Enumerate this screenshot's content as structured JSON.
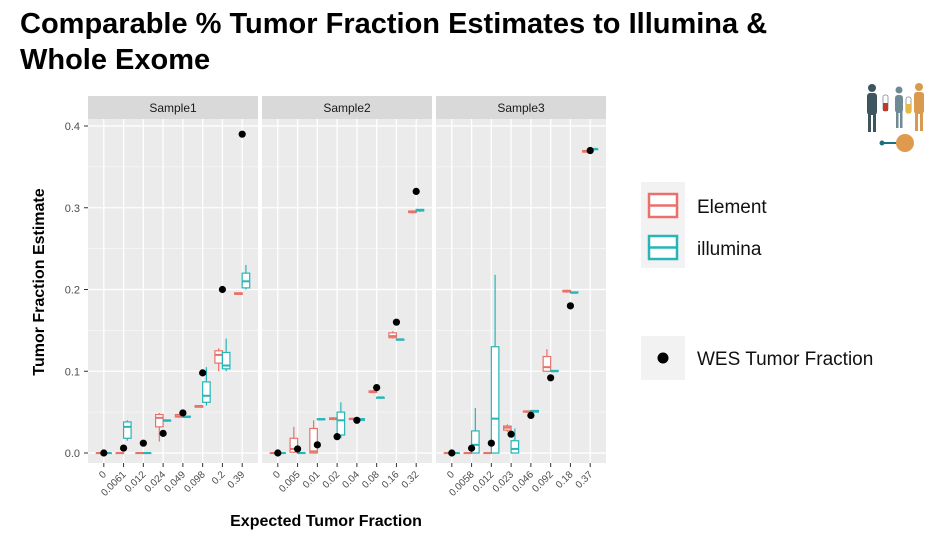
{
  "slide": {
    "title_line1": "Comparable % Tumor Fraction Estimates to Illumina &",
    "title_line2": "Whole Exome"
  },
  "chart_data": {
    "type": "boxplot",
    "ylabel": "Tumor Fraction Estimate",
    "xlabel": "Expected Tumor Fraction",
    "ylim": [
      -0.01,
      0.41
    ],
    "yticks": [
      0.0,
      0.1,
      0.2,
      0.3,
      0.4
    ],
    "ytick_labels": [
      "0.0",
      "0.1",
      "0.2",
      "0.3",
      "0.4"
    ],
    "grid": true,
    "legend_position": "right",
    "legend": {
      "element": "Element",
      "illumina": "illumina",
      "wes": "WES Tumor Fraction"
    },
    "colors": {
      "element": "#E8726A",
      "illumina": "#26B5B8",
      "wes": "#000000",
      "panel_bg": "#EBEBEB",
      "strip_bg": "#D9D9D9",
      "grid": "#FFFFFF"
    },
    "panels": [
      {
        "name": "Sample1",
        "categories": [
          "0",
          "0.0061",
          "0.012",
          "0.024",
          "0.049",
          "0.098",
          "0.2",
          "0.39"
        ],
        "element": [
          {
            "lo": 0.0,
            "q1": 0.0,
            "med": 0.0,
            "q3": 0.0,
            "hi": 0.0
          },
          {
            "lo": 0.0,
            "q1": 0.0,
            "med": 0.0,
            "q3": 0.0,
            "hi": 0.0
          },
          {
            "lo": 0.0,
            "q1": 0.0,
            "med": 0.0,
            "q3": 0.0,
            "hi": 0.0
          },
          {
            "lo": 0.014,
            "q1": 0.032,
            "med": 0.043,
            "q3": 0.047,
            "hi": 0.049
          },
          {
            "lo": 0.043,
            "q1": 0.044,
            "med": 0.045,
            "q3": 0.047,
            "hi": 0.048
          },
          {
            "lo": 0.056,
            "q1": 0.056,
            "med": 0.057,
            "q3": 0.058,
            "hi": 0.058
          },
          {
            "lo": 0.1,
            "q1": 0.11,
            "med": 0.12,
            "q3": 0.125,
            "hi": 0.128
          },
          {
            "lo": 0.194,
            "q1": 0.194,
            "med": 0.195,
            "q3": 0.196,
            "hi": 0.196
          }
        ],
        "illumina": [
          {
            "lo": 0.0,
            "q1": 0.0,
            "med": 0.0,
            "q3": 0.0,
            "hi": 0.0
          },
          {
            "lo": 0.015,
            "q1": 0.018,
            "med": 0.032,
            "q3": 0.038,
            "hi": 0.04
          },
          {
            "lo": 0.0,
            "q1": 0.0,
            "med": 0.0,
            "q3": 0.0,
            "hi": 0.0
          },
          {
            "lo": 0.038,
            "q1": 0.039,
            "med": 0.04,
            "q3": 0.04,
            "hi": 0.041
          },
          {
            "lo": 0.043,
            "q1": 0.044,
            "med": 0.044,
            "q3": 0.045,
            "hi": 0.045
          },
          {
            "lo": 0.058,
            "q1": 0.062,
            "med": 0.07,
            "q3": 0.087,
            "hi": 0.105
          },
          {
            "lo": 0.1,
            "q1": 0.103,
            "med": 0.107,
            "q3": 0.123,
            "hi": 0.14
          },
          {
            "lo": 0.2,
            "q1": 0.202,
            "med": 0.21,
            "q3": 0.22,
            "hi": 0.23
          }
        ],
        "wes": [
          0.0,
          0.006,
          0.012,
          0.024,
          0.049,
          0.098,
          0.2,
          0.39
        ]
      },
      {
        "name": "Sample2",
        "categories": [
          "0",
          "0.005",
          "0.01",
          "0.02",
          "0.04",
          "0.08",
          "0.16",
          "0.32"
        ],
        "element": [
          {
            "lo": 0.0,
            "q1": 0.0,
            "med": 0.0,
            "q3": 0.0,
            "hi": 0.0
          },
          {
            "lo": 0.0,
            "q1": 0.001,
            "med": 0.005,
            "q3": 0.018,
            "hi": 0.032
          },
          {
            "lo": 0.0,
            "q1": 0.0,
            "med": 0.002,
            "q3": 0.03,
            "hi": 0.04
          },
          {
            "lo": 0.04,
            "q1": 0.041,
            "med": 0.042,
            "q3": 0.043,
            "hi": 0.044
          },
          {
            "lo": 0.041,
            "q1": 0.041,
            "med": 0.042,
            "q3": 0.042,
            "hi": 0.043
          },
          {
            "lo": 0.073,
            "q1": 0.074,
            "med": 0.075,
            "q3": 0.076,
            "hi": 0.077
          },
          {
            "lo": 0.14,
            "q1": 0.141,
            "med": 0.143,
            "q3": 0.147,
            "hi": 0.149
          },
          {
            "lo": 0.293,
            "q1": 0.294,
            "med": 0.295,
            "q3": 0.296,
            "hi": 0.297
          }
        ],
        "illumina": [
          {
            "lo": 0.0,
            "q1": 0.0,
            "med": 0.0,
            "q3": 0.0,
            "hi": 0.0
          },
          {
            "lo": 0.0,
            "q1": 0.0,
            "med": 0.0,
            "q3": 0.0,
            "hi": 0.0
          },
          {
            "lo": 0.04,
            "q1": 0.041,
            "med": 0.041,
            "q3": 0.042,
            "hi": 0.042
          },
          {
            "lo": 0.018,
            "q1": 0.022,
            "med": 0.04,
            "q3": 0.05,
            "hi": 0.062
          },
          {
            "lo": 0.04,
            "q1": 0.04,
            "med": 0.041,
            "q3": 0.042,
            "hi": 0.042
          },
          {
            "lo": 0.067,
            "q1": 0.067,
            "med": 0.068,
            "q3": 0.068,
            "hi": 0.069
          },
          {
            "lo": 0.138,
            "q1": 0.138,
            "med": 0.139,
            "q3": 0.139,
            "hi": 0.14
          },
          {
            "lo": 0.295,
            "q1": 0.296,
            "med": 0.297,
            "q3": 0.298,
            "hi": 0.298
          }
        ],
        "wes": [
          0.0,
          0.005,
          0.01,
          0.02,
          0.04,
          0.08,
          0.16,
          0.32
        ]
      },
      {
        "name": "Sample3",
        "categories": [
          "0",
          "0.0058",
          "0.012",
          "0.023",
          "0.046",
          "0.092",
          "0.18",
          "0.37"
        ],
        "element": [
          {
            "lo": 0.0,
            "q1": 0.0,
            "med": 0.0,
            "q3": 0.0,
            "hi": 0.0
          },
          {
            "lo": 0.0,
            "q1": 0.0,
            "med": 0.0,
            "q3": 0.0,
            "hi": 0.0
          },
          {
            "lo": 0.0,
            "q1": 0.0,
            "med": 0.0,
            "q3": 0.0,
            "hi": 0.0
          },
          {
            "lo": 0.026,
            "q1": 0.028,
            "med": 0.031,
            "q3": 0.033,
            "hi": 0.035
          },
          {
            "lo": 0.049,
            "q1": 0.05,
            "med": 0.051,
            "q3": 0.051,
            "hi": 0.052
          },
          {
            "lo": 0.1,
            "q1": 0.1,
            "med": 0.105,
            "q3": 0.118,
            "hi": 0.127
          },
          {
            "lo": 0.196,
            "q1": 0.197,
            "med": 0.198,
            "q3": 0.199,
            "hi": 0.2
          },
          {
            "lo": 0.368,
            "q1": 0.368,
            "med": 0.369,
            "q3": 0.37,
            "hi": 0.37
          }
        ],
        "illumina": [
          {
            "lo": 0.0,
            "q1": 0.0,
            "med": 0.0,
            "q3": 0.0,
            "hi": 0.0
          },
          {
            "lo": 0.0,
            "q1": 0.0,
            "med": 0.01,
            "q3": 0.027,
            "hi": 0.055
          },
          {
            "lo": 0.0,
            "q1": 0.0,
            "med": 0.042,
            "q3": 0.13,
            "hi": 0.218
          },
          {
            "lo": 0.0,
            "q1": 0.0,
            "med": 0.005,
            "q3": 0.015,
            "hi": 0.03
          },
          {
            "lo": 0.05,
            "q1": 0.05,
            "med": 0.051,
            "q3": 0.052,
            "hi": 0.052
          },
          {
            "lo": 0.099,
            "q1": 0.1,
            "med": 0.1,
            "q3": 0.101,
            "hi": 0.101
          },
          {
            "lo": 0.195,
            "q1": 0.196,
            "med": 0.196,
            "q3": 0.197,
            "hi": 0.197
          },
          {
            "lo": 0.37,
            "q1": 0.371,
            "med": 0.372,
            "q3": 0.372,
            "hi": 0.373
          }
        ],
        "wes": [
          0.0,
          0.0058,
          0.012,
          0.023,
          0.046,
          0.092,
          0.18,
          0.37
        ]
      }
    ]
  }
}
